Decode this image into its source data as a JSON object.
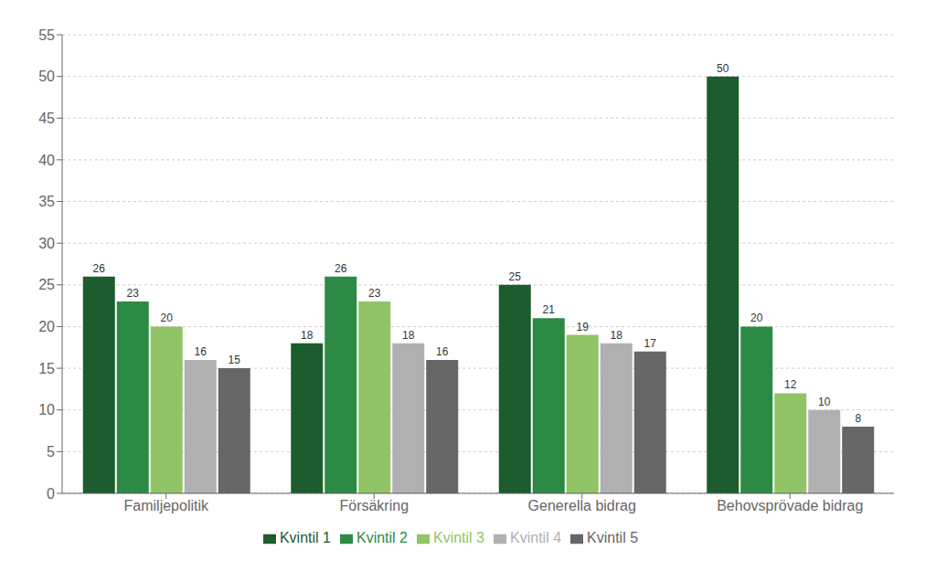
{
  "chart_data": {
    "type": "bar",
    "categories": [
      "Familjepolitik",
      "Försäkring",
      "Generella bidrag",
      "Behovsprövade bidrag"
    ],
    "series": [
      {
        "name": "Kvintil 1",
        "color": "#1c5c2e",
        "values": [
          26,
          18,
          25,
          50
        ]
      },
      {
        "name": "Kvintil 2",
        "color": "#2d8a45",
        "values": [
          23,
          26,
          21,
          20
        ]
      },
      {
        "name": "Kvintil 3",
        "color": "#90c467",
        "values": [
          20,
          23,
          19,
          12
        ]
      },
      {
        "name": "Kvintil 4",
        "color": "#b0b0b0",
        "values": [
          16,
          18,
          18,
          10
        ]
      },
      {
        "name": "Kvintil 5",
        "color": "#666666",
        "values": [
          15,
          16,
          17,
          8
        ]
      }
    ],
    "ylim": [
      0,
      55
    ],
    "yticks": [
      0,
      5,
      10,
      15,
      20,
      25,
      30,
      35,
      40,
      45,
      50,
      55
    ],
    "grid": true,
    "legend": "bottom",
    "data_labels": true
  }
}
